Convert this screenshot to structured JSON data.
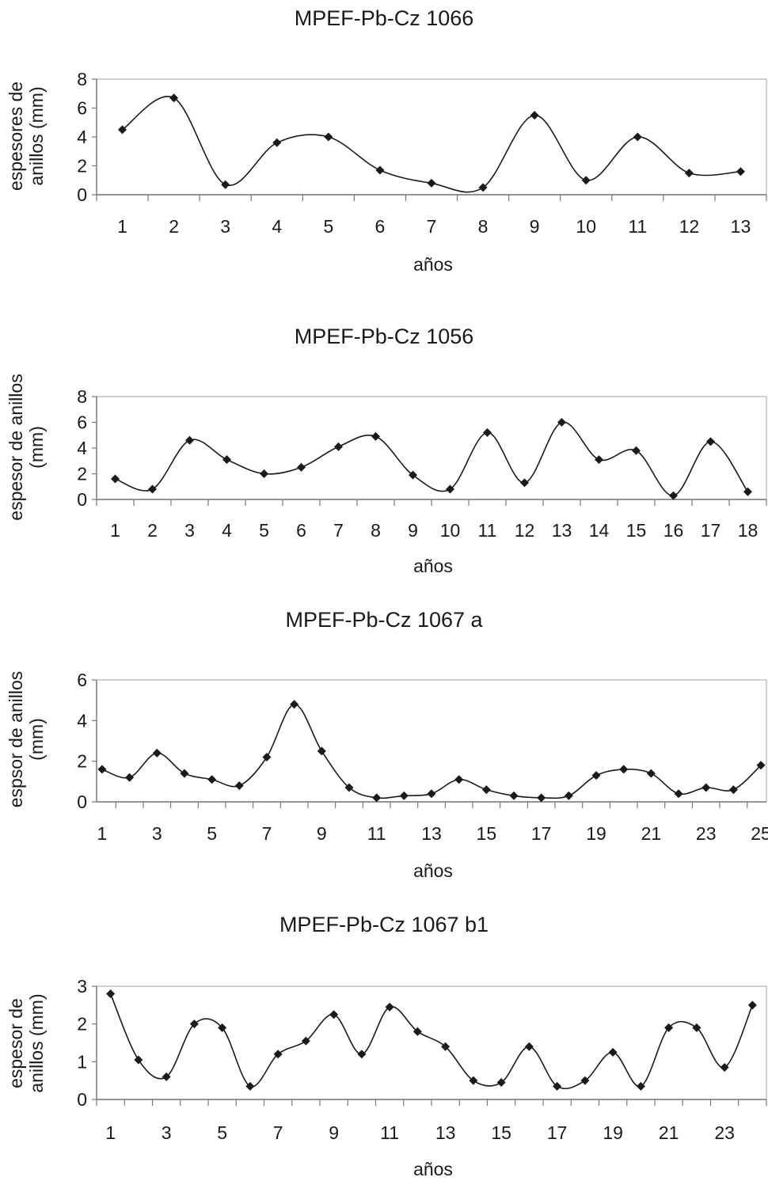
{
  "chart_data": [
    {
      "type": "line",
      "title": "MPEF-Pb-Cz 1066",
      "xlabel": "años",
      "ylabel": [
        "espesores de",
        "anillos (mm)"
      ],
      "ylim": [
        0,
        8
      ],
      "yticks": [
        0,
        2,
        4,
        6,
        8
      ],
      "x": [
        1,
        2,
        3,
        4,
        5,
        6,
        7,
        8,
        9,
        10,
        11,
        12,
        13
      ],
      "xticks": [
        1,
        2,
        3,
        4,
        5,
        6,
        7,
        8,
        9,
        10,
        11,
        12,
        13
      ],
      "series": [
        {
          "values": [
            4.5,
            6.7,
            0.7,
            3.6,
            4.0,
            1.7,
            0.8,
            0.5,
            5.5,
            1.0,
            4.0,
            1.5,
            1.6
          ]
        }
      ],
      "grid": false,
      "legend": "none",
      "line_color": "#1a1a1a",
      "marker": "diamond"
    },
    {
      "type": "line",
      "title": "MPEF-Pb-Cz 1056",
      "xlabel": "años",
      "ylabel": [
        "espesor de anillos",
        "(mm)"
      ],
      "ylim": [
        0,
        8
      ],
      "yticks": [
        0,
        2,
        4,
        6,
        8
      ],
      "x": [
        1,
        2,
        3,
        4,
        5,
        6,
        7,
        8,
        9,
        10,
        11,
        12,
        13,
        14,
        15,
        16,
        17,
        18
      ],
      "xticks": [
        1,
        2,
        3,
        4,
        5,
        6,
        7,
        8,
        9,
        10,
        11,
        12,
        13,
        14,
        15,
        16,
        17,
        18
      ],
      "series": [
        {
          "values": [
            1.6,
            0.8,
            4.6,
            3.1,
            2.0,
            2.5,
            4.1,
            4.9,
            1.9,
            0.8,
            5.2,
            1.3,
            6.0,
            3.1,
            3.8,
            0.3,
            4.5,
            0.6
          ]
        }
      ],
      "grid": false,
      "legend": "none",
      "line_color": "#1a1a1a",
      "marker": "diamond"
    },
    {
      "type": "line",
      "title": "MPEF-Pb-Cz 1067 a",
      "xlabel": "años",
      "ylabel": [
        "espsor de anillos",
        "(mm)"
      ],
      "ylim": [
        0,
        6
      ],
      "yticks": [
        0,
        2,
        4,
        6
      ],
      "x": [
        1,
        2,
        3,
        4,
        5,
        6,
        7,
        8,
        9,
        10,
        11,
        12,
        13,
        14,
        15,
        16,
        17,
        18,
        19,
        20,
        21,
        22,
        23,
        24,
        25
      ],
      "xticks": [
        1,
        3,
        5,
        7,
        9,
        11,
        13,
        15,
        17,
        19,
        21,
        23,
        25
      ],
      "series": [
        {
          "values": [
            1.6,
            1.2,
            2.4,
            1.4,
            1.1,
            0.8,
            2.2,
            4.8,
            2.5,
            0.7,
            0.2,
            0.3,
            0.4,
            1.1,
            0.6,
            0.3,
            0.2,
            0.3,
            1.3,
            1.6,
            1.4,
            0.4,
            0.7,
            0.6,
            1.8
          ]
        }
      ],
      "grid": false,
      "legend": "none",
      "line_color": "#1a1a1a",
      "marker": "diamond"
    },
    {
      "type": "line",
      "title": "MPEF-Pb-Cz 1067 b1",
      "xlabel": "años",
      "ylabel": [
        "espesor de",
        "anillos (mm)"
      ],
      "ylim": [
        0,
        3
      ],
      "yticks": [
        0,
        1,
        2,
        3
      ],
      "x": [
        1,
        2,
        3,
        4,
        5,
        6,
        7,
        8,
        9,
        10,
        11,
        12,
        13,
        14,
        15,
        16,
        17,
        18,
        19,
        20,
        21,
        22,
        23,
        24
      ],
      "xticks": [
        1,
        3,
        5,
        7,
        9,
        11,
        13,
        15,
        17,
        19,
        21,
        23
      ],
      "series": [
        {
          "values": [
            2.8,
            1.05,
            0.6,
            2.0,
            1.9,
            0.35,
            1.2,
            1.55,
            2.25,
            1.2,
            2.45,
            1.8,
            1.4,
            0.5,
            0.45,
            1.4,
            0.35,
            0.5,
            1.25,
            0.35,
            1.9,
            1.9,
            0.85,
            2.5
          ]
        }
      ],
      "grid": false,
      "legend": "none",
      "line_color": "#1a1a1a",
      "marker": "diamond"
    }
  ]
}
